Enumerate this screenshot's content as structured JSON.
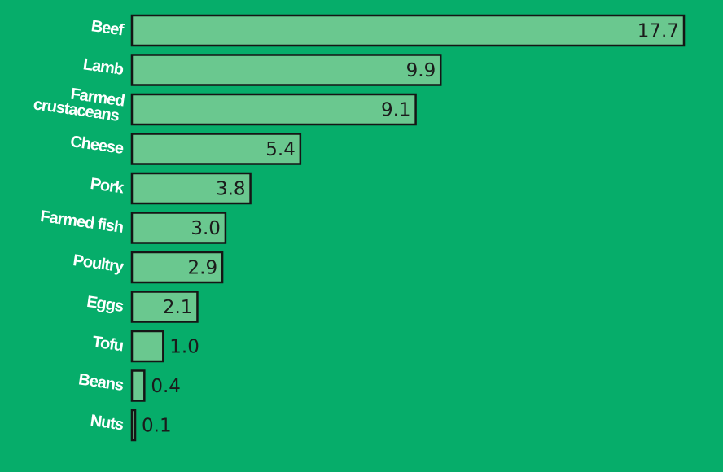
{
  "colors": {
    "background": "#06ad6a",
    "bar_fill": "#6ac88f",
    "bar_stroke": "#151515",
    "category_text": "#ffffff",
    "value_text": "#1b1b1b"
  },
  "chart_data": {
    "type": "bar",
    "orientation": "horizontal",
    "categories": [
      "Beef",
      "Lamb",
      "Farmed crustaceans",
      "Cheese",
      "Pork",
      "Farmed fish",
      "Poultry",
      "Eggs",
      "Tofu",
      "Beans",
      "Nuts"
    ],
    "values": [
      17.7,
      9.9,
      9.1,
      5.4,
      3.8,
      3.0,
      2.9,
      2.1,
      1.0,
      0.4,
      0.1
    ],
    "value_labels": [
      "17.7",
      "9.9",
      "9.1",
      "5.4",
      "3.8",
      "3.0",
      "2.9",
      "2.1",
      "1.0",
      "0.4",
      "0.1"
    ],
    "title": "",
    "xlabel": "",
    "ylabel": "",
    "xlim": [
      0,
      17.7
    ],
    "grid": false,
    "legend": "none"
  }
}
